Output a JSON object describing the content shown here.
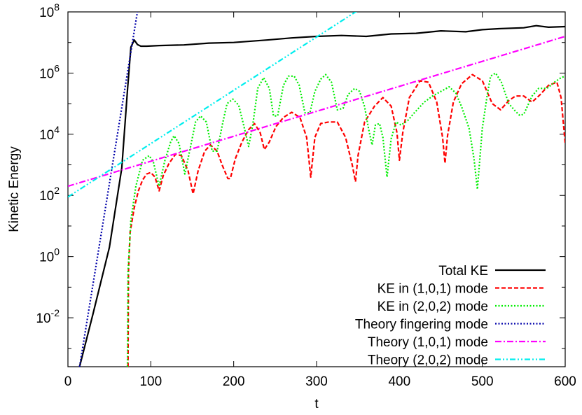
{
  "chart_data": {
    "type": "line",
    "xlabel": "t",
    "ylabel": "Kinetic Energy",
    "xlim": [
      0,
      600
    ],
    "ylim_log10": [
      -3.6,
      8
    ],
    "yscale": "log",
    "x_ticks": [
      "0",
      "100",
      "200",
      "300",
      "400",
      "500",
      "600"
    ],
    "y_ticks": [
      {
        "base": "10",
        "exp": "-2",
        "log10": -2
      },
      {
        "base": "10",
        "exp": "0",
        "log10": 0
      },
      {
        "base": "10",
        "exp": "2",
        "log10": 2
      },
      {
        "base": "10",
        "exp": "4",
        "log10": 4
      },
      {
        "base": "10",
        "exp": "6",
        "log10": 6
      },
      {
        "base": "10",
        "exp": "8",
        "log10": 8
      }
    ],
    "grid": false,
    "legend_position": "bottom-right",
    "series": [
      {
        "name": "Total KE",
        "color": "#000000",
        "style": "solid",
        "x": [
          14,
          30,
          50,
          65,
          72,
          76,
          80,
          84,
          88,
          95,
          110,
          140,
          170,
          200,
          240,
          270,
          300,
          330,
          360,
          390,
          420,
          450,
          480,
          500,
          520,
          550,
          565,
          580,
          600
        ],
        "log10y": [
          -3.6,
          -1.9,
          0.3,
          2.9,
          5.5,
          6.85,
          7.08,
          6.93,
          6.88,
          6.88,
          6.9,
          6.92,
          6.98,
          7.0,
          7.08,
          7.15,
          7.2,
          7.23,
          7.2,
          7.28,
          7.3,
          7.38,
          7.35,
          7.42,
          7.45,
          7.48,
          7.55,
          7.5,
          7.52
        ]
      },
      {
        "name": "KE in (1,0,1) mode",
        "color": "#ff0000",
        "style": "dashed",
        "x": [
          72.5,
          73,
          75,
          80,
          85,
          90,
          95,
          100,
          105,
          110,
          115,
          122,
          130,
          137,
          145,
          151,
          157,
          165,
          172,
          180,
          186,
          193,
          196,
          202,
          210,
          218,
          225,
          232,
          237,
          243,
          251,
          260,
          270,
          280,
          288,
          293,
          298,
          305,
          315,
          325,
          335,
          343,
          347,
          350,
          358,
          370,
          380,
          390,
          397,
          400,
          404,
          412,
          425,
          435,
          445,
          452,
          455,
          458,
          465,
          475,
          488,
          500,
          512,
          522,
          532,
          540,
          550,
          560,
          570,
          580,
          590,
          595,
          600
        ],
        "log10y": [
          -3.6,
          -0.5,
          0.8,
          1.6,
          2.15,
          2.5,
          2.7,
          2.75,
          2.6,
          2.15,
          2.65,
          3.05,
          3.35,
          3.3,
          2.8,
          2.05,
          2.8,
          3.45,
          3.65,
          3.45,
          3.0,
          2.55,
          2.55,
          3.2,
          3.75,
          4.15,
          4.35,
          4.05,
          3.5,
          3.75,
          4.25,
          4.55,
          4.72,
          4.55,
          3.9,
          2.6,
          3.9,
          4.35,
          4.4,
          4.4,
          3.9,
          3.0,
          2.45,
          3.3,
          4.4,
          4.92,
          5.2,
          4.92,
          4.05,
          3.15,
          4.05,
          5.2,
          5.75,
          5.7,
          5.05,
          3.9,
          3.05,
          3.95,
          5.05,
          5.65,
          5.95,
          5.75,
          5.0,
          4.8,
          5.1,
          5.25,
          5.25,
          5.05,
          5.3,
          5.6,
          5.7,
          5.2,
          3.7
        ]
      },
      {
        "name": "KE in (2,0,2) mode",
        "color": "#00ee00",
        "style": "dotted",
        "x": [
          71.8,
          72.5,
          76,
          82,
          90,
          98,
          103,
          110,
          117,
          124,
          128,
          134,
          141,
          148,
          154,
          160,
          167,
          174,
          180,
          187,
          192,
          199,
          206,
          212,
          218,
          223,
          229,
          236,
          243,
          248,
          253,
          260,
          266,
          273,
          279,
          286,
          292,
          298,
          305,
          311,
          318,
          325,
          332,
          338,
          346,
          352,
          358,
          363,
          367,
          371,
          376,
          380,
          385,
          390,
          396,
          402,
          410,
          418,
          430,
          440,
          460,
          468,
          475,
          484,
          490,
          494,
          500,
          506,
          510,
          516,
          523,
          532,
          540,
          545,
          550,
          555,
          560,
          568,
          578,
          588,
          595,
          600
        ],
        "log10y": [
          -3.6,
          -0.5,
          1.2,
          2.3,
          3.15,
          3.3,
          3.1,
          2.3,
          3.15,
          3.75,
          3.95,
          3.7,
          2.7,
          3.6,
          4.4,
          4.6,
          4.4,
          3.45,
          3.45,
          4.4,
          5.0,
          5.15,
          4.95,
          4.3,
          3.6,
          4.3,
          5.5,
          5.85,
          5.5,
          4.6,
          4.6,
          5.6,
          5.9,
          5.9,
          5.6,
          4.7,
          4.7,
          5.4,
          5.8,
          5.95,
          5.7,
          4.8,
          4.85,
          5.3,
          5.5,
          5.4,
          4.9,
          4.15,
          3.65,
          4.3,
          4.35,
          3.9,
          2.6,
          3.85,
          4.4,
          4.3,
          4.45,
          4.7,
          5.05,
          5.25,
          5.55,
          5.35,
          4.9,
          4.2,
          3.2,
          2.2,
          4.2,
          5.3,
          5.9,
          6.0,
          5.7,
          5.0,
          4.75,
          4.62,
          4.65,
          4.95,
          5.25,
          5.5,
          5.5,
          5.72,
          5.85,
          5.9
        ]
      },
      {
        "name": "Theory fingering mode",
        "color": "#0000aa",
        "style": "dotted",
        "x": [
          14,
          85
        ],
        "log10y": [
          -3.6,
          8.2
        ]
      },
      {
        "name": "Theory (1,0,1) mode",
        "color": "#ff00ff",
        "style": "dash-dot",
        "x": [
          0,
          600
        ],
        "log10y": [
          2.3,
          7.2
        ]
      },
      {
        "name": "Theory (2,0,2) mode",
        "color": "#00eeee",
        "style": "dash-dot-dot",
        "x": [
          0,
          350
        ],
        "log10y": [
          1.95,
          8.05
        ]
      }
    ]
  }
}
